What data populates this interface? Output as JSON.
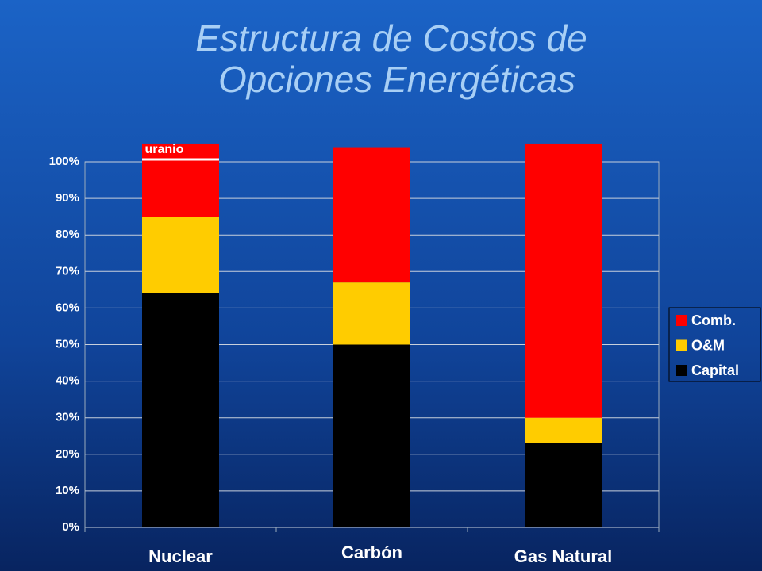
{
  "chart_data": {
    "type": "stacked_bar",
    "title": [
      "Estructura de Costos de",
      "Opciones Energéticas"
    ],
    "categories": [
      "Nuclear",
      "Carbón",
      "Gas Natural"
    ],
    "series": [
      {
        "name": "Capital",
        "color": "#000000",
        "values": [
          64,
          50,
          23
        ]
      },
      {
        "name": "O&M",
        "color": "#ffcc00",
        "values": [
          21,
          17,
          7
        ]
      },
      {
        "name": "Comb.",
        "color": "#ff0000",
        "values": [
          20,
          37,
          75
        ]
      }
    ],
    "annotation": "uranio",
    "ylim": [
      0,
      100
    ],
    "yticks": [
      {
        "value": 0,
        "label": "0%"
      },
      {
        "value": 10,
        "label": "10%"
      },
      {
        "value": 20,
        "label": "20%"
      },
      {
        "value": 30,
        "label": "30%"
      },
      {
        "value": 40,
        "label": "40%"
      },
      {
        "value": 50,
        "label": "50%"
      },
      {
        "value": 60,
        "label": "60%"
      },
      {
        "value": 70,
        "label": "70%"
      },
      {
        "value": 80,
        "label": "80%"
      },
      {
        "value": 90,
        "label": "90%"
      },
      {
        "value": 100,
        "label": "100%"
      }
    ],
    "grid": true,
    "legend": "right"
  }
}
